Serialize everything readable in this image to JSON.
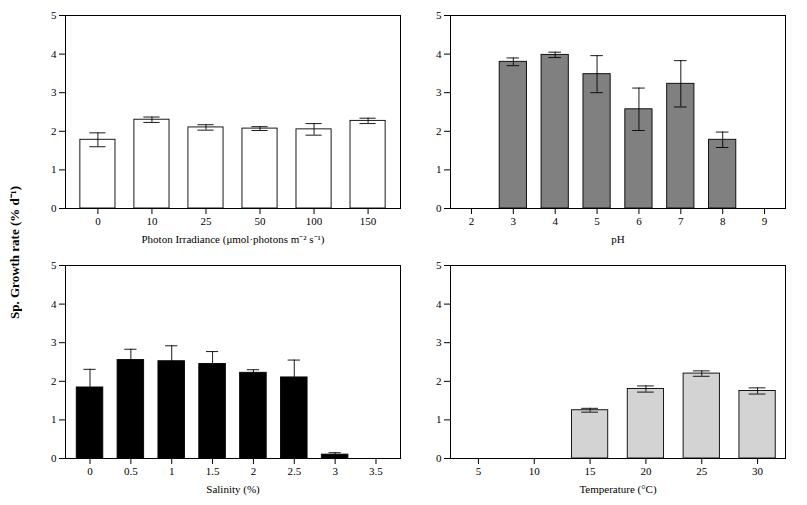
{
  "chart_data": [
    {
      "type": "bar",
      "xlabel": "Photon Irradiance (μmol·photons m⁻² s⁻¹)",
      "ylabel": "Sp. Growth rate (% d⁻¹)",
      "categories": [
        "0",
        "10",
        "25",
        "50",
        "100",
        "150"
      ],
      "values": [
        1.78,
        2.3,
        2.1,
        2.07,
        2.05,
        2.27
      ],
      "error": [
        0.18,
        0.07,
        0.07,
        0.05,
        0.15,
        0.07
      ],
      "color": "#ffffff",
      "ylim": [
        0,
        5
      ],
      "yticks": [
        0,
        1,
        2,
        3,
        4,
        5
      ]
    },
    {
      "type": "bar",
      "xlabel": "pH",
      "x": [
        3,
        4,
        5,
        6,
        7,
        8
      ],
      "values": [
        3.8,
        3.98,
        3.48,
        2.57,
        3.23,
        1.78
      ],
      "error": [
        0.1,
        0.07,
        0.48,
        0.55,
        0.6,
        0.2
      ],
      "color": "#808080",
      "xlim": [
        1.5,
        9.5
      ],
      "xticks": [
        2,
        3,
        4,
        5,
        6,
        7,
        8,
        9
      ],
      "ylim": [
        0,
        5
      ],
      "yticks": [
        0,
        1,
        2,
        3,
        4,
        5
      ]
    },
    {
      "type": "bar",
      "xlabel": "Salinity (%)",
      "x": [
        0,
        0.5,
        1,
        1.5,
        2,
        2.5,
        3
      ],
      "values": [
        1.84,
        2.55,
        2.52,
        2.45,
        2.22,
        2.1,
        0.1
      ],
      "error": [
        0.47,
        0.28,
        0.4,
        0.32,
        0.08,
        0.45,
        0.05
      ],
      "color": "#000000",
      "xlim": [
        -0.3,
        3.8
      ],
      "xticks": [
        0,
        0.5,
        1,
        1.5,
        2,
        2.5,
        3,
        3.5
      ],
      "ylim": [
        0,
        5
      ],
      "yticks": [
        0,
        1,
        2,
        3,
        4,
        5
      ]
    },
    {
      "type": "bar",
      "xlabel": "Temperature (°C)",
      "x": [
        15,
        20,
        25,
        30
      ],
      "values": [
        1.25,
        1.8,
        2.2,
        1.75
      ],
      "error": [
        0.05,
        0.08,
        0.07,
        0.08
      ],
      "color": "#d3d3d3",
      "xlim": [
        2.5,
        32.5
      ],
      "xticks": [
        5,
        10,
        15,
        20,
        25,
        30
      ],
      "ylim": [
        0,
        5
      ],
      "yticks": [
        0,
        1,
        2,
        3,
        4,
        5
      ]
    }
  ]
}
